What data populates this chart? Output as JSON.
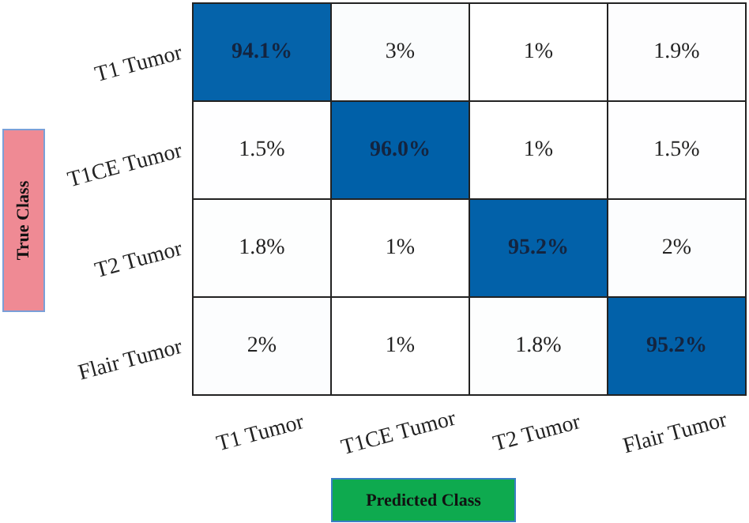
{
  "chart_data": {
    "type": "heatmap",
    "xlabel": "Predicted Class",
    "ylabel": "True Class",
    "categories": [
      "T1 Tumor",
      "T1CE Tumor",
      "T2 Tumor",
      "Flair Tumor"
    ],
    "y_categories": [
      "T1 Tumor",
      "T1CE Tumor",
      "T2 Tumor",
      "Flair Tumor"
    ],
    "cells": [
      [
        94.1,
        3,
        1,
        1.9
      ],
      [
        1.5,
        96.0,
        1,
        1.5
      ],
      [
        1.8,
        1,
        95.2,
        2
      ],
      [
        2,
        1,
        1.8,
        95.2
      ]
    ],
    "cell_labels": [
      [
        "94.1%",
        "3%",
        "1%",
        "1.9%"
      ],
      [
        "1.5%",
        "96.0%",
        "1%",
        "1.5%"
      ],
      [
        "1.8%",
        "1%",
        "95.2%",
        "2%"
      ],
      [
        "2%",
        "1%",
        "1.8%",
        "95.2%"
      ]
    ]
  }
}
